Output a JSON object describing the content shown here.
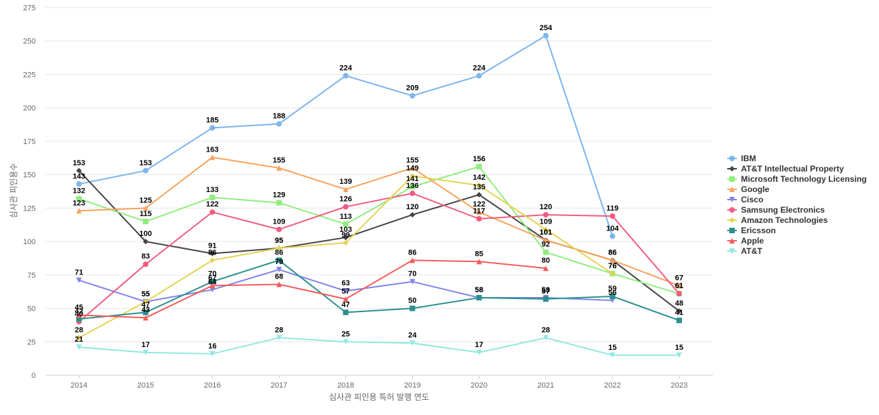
{
  "chart_data": {
    "type": "line",
    "title": "",
    "xlabel": "심사관 피인용 특허 발행 연도",
    "ylabel": "심사관 피인용수",
    "categories": [
      "2014",
      "2015",
      "2016",
      "2017",
      "2018",
      "2019",
      "2020",
      "2021",
      "2022",
      "2023"
    ],
    "ylim": [
      0,
      275
    ],
    "yticks": [
      0,
      25,
      50,
      75,
      100,
      125,
      150,
      175,
      200,
      225,
      250,
      275
    ],
    "grid": "horizontal",
    "legend_position": "right",
    "series": [
      {
        "name": "IBM",
        "color": "#7cb5ec",
        "marker": "circle",
        "values": [
          143,
          153,
          185,
          188,
          224,
          209,
          224,
          254,
          104,
          null
        ]
      },
      {
        "name": "AT&T Intellectual Property",
        "color": "#434348",
        "marker": "diamond",
        "values": [
          153,
          100,
          91,
          95,
          103,
          120,
          135,
          101,
          86,
          48
        ]
      },
      {
        "name": "Microsoft Technology Licensing",
        "color": "#90ed7d",
        "marker": "square",
        "values": [
          132,
          115,
          133,
          129,
          113,
          141,
          156,
          92,
          76,
          61
        ]
      },
      {
        "name": "Google",
        "color": "#f7a35c",
        "marker": "triangle",
        "values": [
          123,
          125,
          163,
          155,
          139,
          155,
          122,
          101,
          86,
          67
        ]
      },
      {
        "name": "Cisco",
        "color": "#8085e9",
        "marker": "triangle-down",
        "values": [
          71,
          55,
          64,
          79,
          63,
          70,
          58,
          58,
          56,
          null
        ]
      },
      {
        "name": "Samsung Electronics",
        "color": "#f15c80",
        "marker": "circle",
        "values": [
          40,
          83,
          122,
          109,
          126,
          136,
          117,
          120,
          119,
          61
        ]
      },
      {
        "name": "Amazon Technologies",
        "color": "#e4d354",
        "marker": "diamond",
        "values": [
          28,
          55,
          86,
          95,
          99,
          149,
          142,
          109,
          76,
          null
        ]
      },
      {
        "name": "Ericsson",
        "color": "#2b908f",
        "marker": "square",
        "values": [
          42,
          47,
          70,
          86,
          47,
          50,
          58,
          57,
          59,
          41
        ]
      },
      {
        "name": "Apple",
        "color": "#f45b5b",
        "marker": "triangle",
        "values": [
          45,
          43,
          67,
          68,
          57,
          86,
          85,
          80,
          null,
          null
        ]
      },
      {
        "name": "AT&T",
        "color": "#91e8e1",
        "marker": "triangle-down",
        "values": [
          21,
          17,
          16,
          28,
          25,
          24,
          17,
          28,
          15,
          15
        ]
      }
    ]
  }
}
